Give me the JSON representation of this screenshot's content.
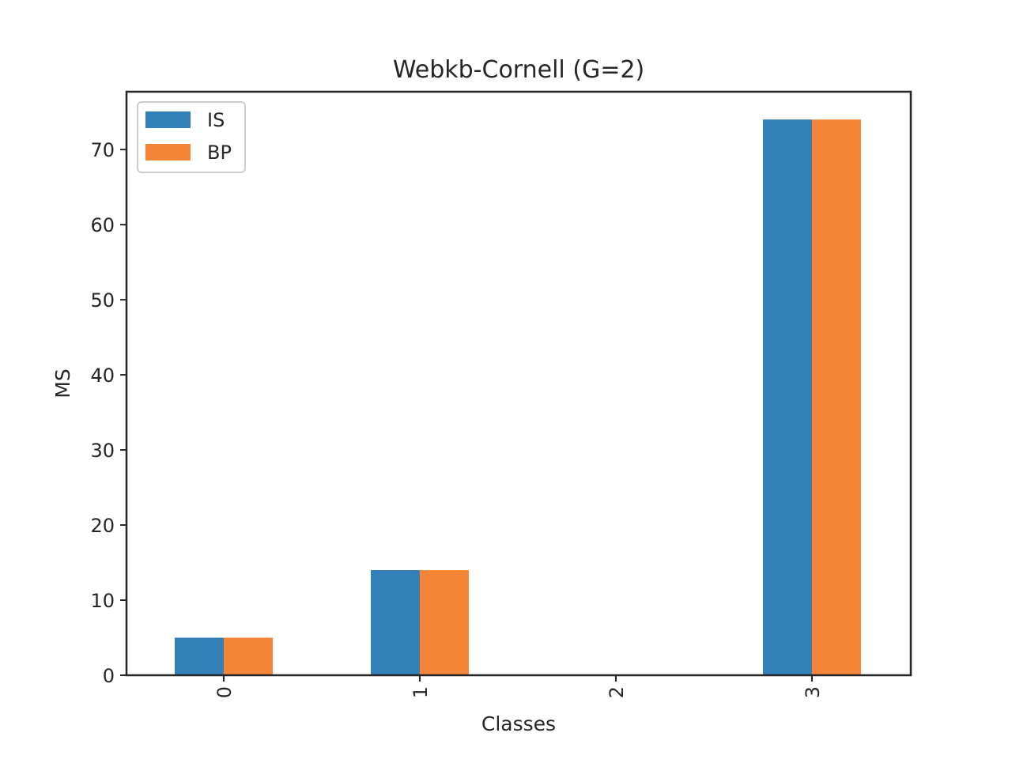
{
  "chart_data": {
    "type": "bar",
    "title": "Webkb-Cornell (G=2)",
    "xlabel": "Classes",
    "ylabel": "MS",
    "categories": [
      "0",
      "1",
      "2",
      "3"
    ],
    "series": [
      {
        "name": "IS",
        "color": "#3480b9",
        "values": [
          5,
          14,
          0,
          74
        ]
      },
      {
        "name": "BP",
        "color": "#f68637",
        "values": [
          5,
          14,
          0,
          74
        ]
      }
    ],
    "ylim": [
      0,
      77.7
    ],
    "yticks": [
      0,
      10,
      20,
      30,
      40,
      50,
      60,
      70
    ],
    "grid": false,
    "legend_position": "top-left",
    "xtick_rotation": 90
  }
}
